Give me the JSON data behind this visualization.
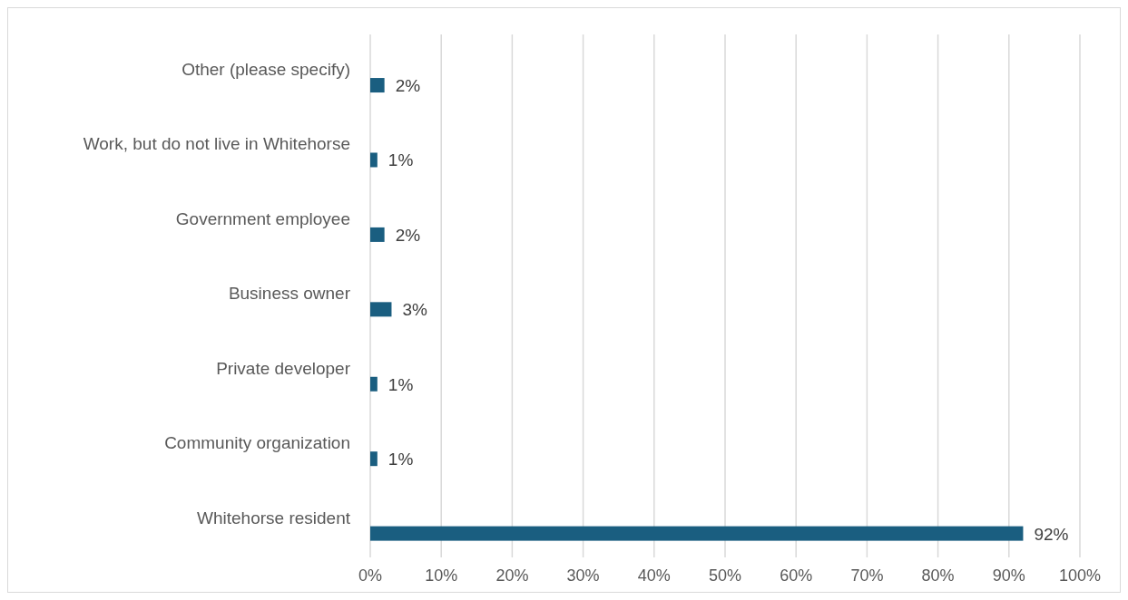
{
  "chart_data": {
    "type": "bar",
    "orientation": "horizontal",
    "categories": [
      "Other (please specify)",
      "Work, but do not live in Whitehorse",
      "Government employee",
      "Business owner",
      "Private developer",
      "Community organization",
      "Whitehorse resident"
    ],
    "values": [
      2,
      1,
      2,
      3,
      1,
      1,
      92
    ],
    "value_labels": [
      "2%",
      "1%",
      "2%",
      "3%",
      "1%",
      "1%",
      "92%"
    ],
    "color": "#1a5e80",
    "xlim": [
      0,
      100
    ],
    "xticks": [
      {
        "value": 0,
        "label": "0%"
      },
      {
        "value": 10,
        "label": "10%"
      },
      {
        "value": 20,
        "label": "20%"
      },
      {
        "value": 30,
        "label": "30%"
      },
      {
        "value": 40,
        "label": "40%"
      },
      {
        "value": 50,
        "label": "50%"
      },
      {
        "value": 60,
        "label": "60%"
      },
      {
        "value": 70,
        "label": "70%"
      },
      {
        "value": 80,
        "label": "80%"
      },
      {
        "value": 90,
        "label": "90%"
      },
      {
        "value": 100,
        "label": "100%"
      }
    ],
    "grid": "x"
  }
}
